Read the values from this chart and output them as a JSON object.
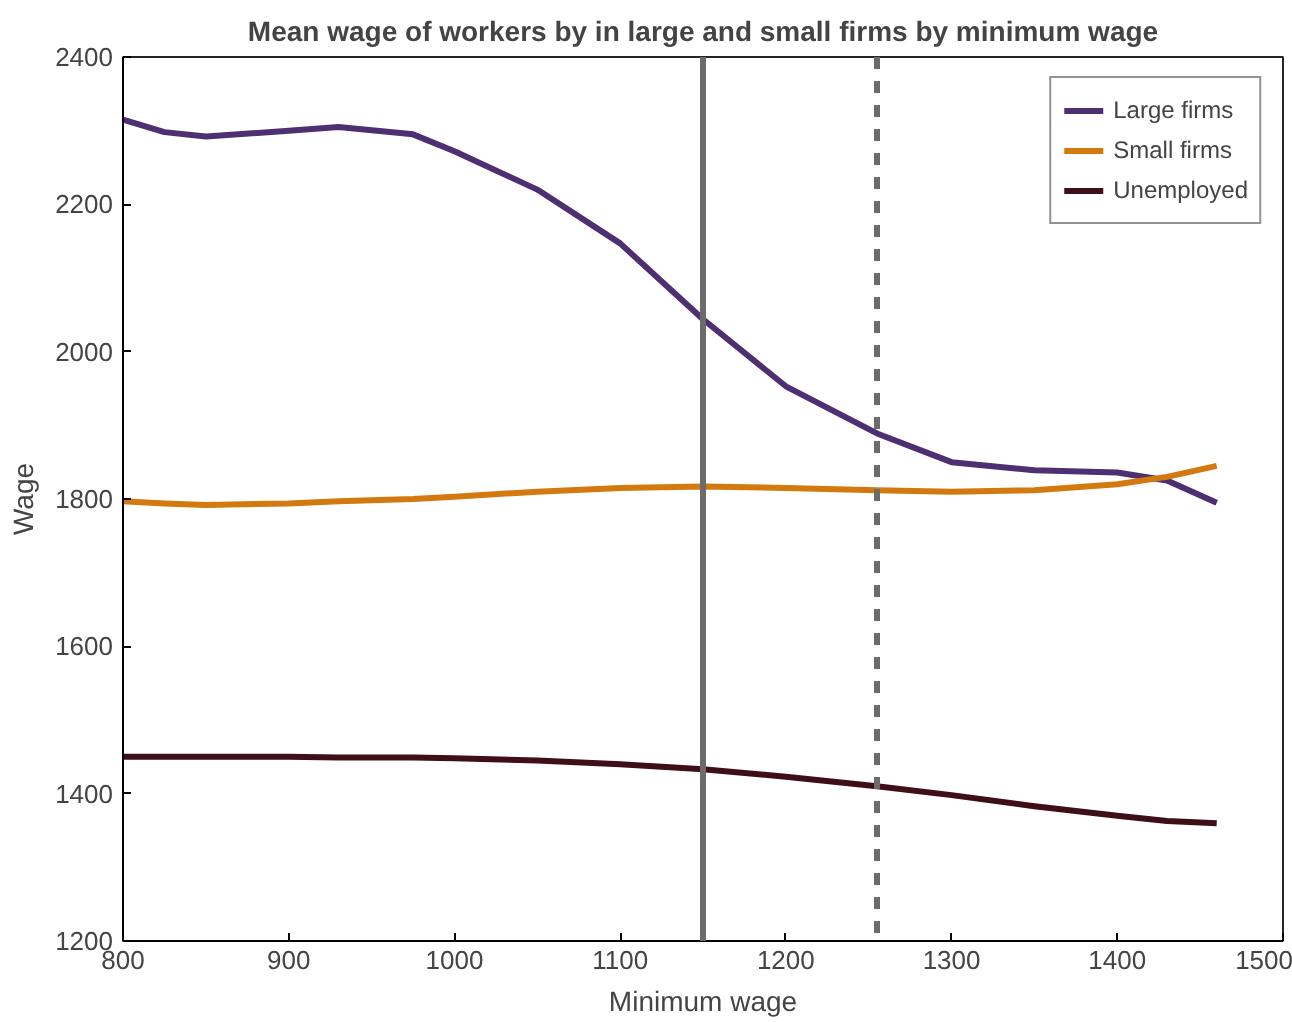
{
  "chart_data": {
    "type": "line",
    "title": "Mean wage of workers by in large and small firms by minimum wage",
    "xlabel": "Minimum wage",
    "ylabel": "Wage",
    "x": [
      800,
      825,
      850,
      900,
      930,
      975,
      1000,
      1050,
      1100,
      1150,
      1200,
      1255,
      1300,
      1350,
      1400,
      1430,
      1460
    ],
    "series": [
      {
        "name": "Large firms",
        "color": "#4e2f72",
        "values": [
          2315,
          2298,
          2292,
          2300,
          2305,
          2295,
          2272,
          2220,
          2147,
          2044,
          1953,
          1889,
          1850,
          1839,
          1836,
          1825,
          1795
        ]
      },
      {
        "name": "Small firms",
        "color": "#d4790f",
        "values": [
          1797,
          1794,
          1792,
          1794,
          1797,
          1800,
          1803,
          1810,
          1815,
          1817,
          1815,
          1812,
          1810,
          1812,
          1820,
          1830,
          1845
        ]
      },
      {
        "name": "Unemployed",
        "color": "#3e0f17",
        "values": [
          1450,
          1450,
          1450,
          1450,
          1449,
          1449,
          1448,
          1445,
          1440,
          1433,
          1423,
          1410,
          1398,
          1383,
          1370,
          1363,
          1360
        ]
      }
    ],
    "xlim": [
      800,
      1500
    ],
    "xticks": [
      800,
      900,
      1000,
      1100,
      1200,
      1300,
      1400,
      1500
    ],
    "ylim": [
      1200,
      2400
    ],
    "yticks": [
      1200,
      1400,
      1600,
      1800,
      2000,
      2200,
      2400
    ],
    "ref_lines": [
      {
        "axis": "x",
        "value": 1150,
        "label": null,
        "color": "#6b6b6b",
        "line_style": "solid"
      },
      {
        "axis": "x",
        "value": 1255,
        "label": null,
        "color": "#6b6b6b",
        "line_style": "dashed"
      }
    ],
    "grid": false,
    "legend": "top right",
    "line_style": "solid",
    "marker": "none"
  }
}
